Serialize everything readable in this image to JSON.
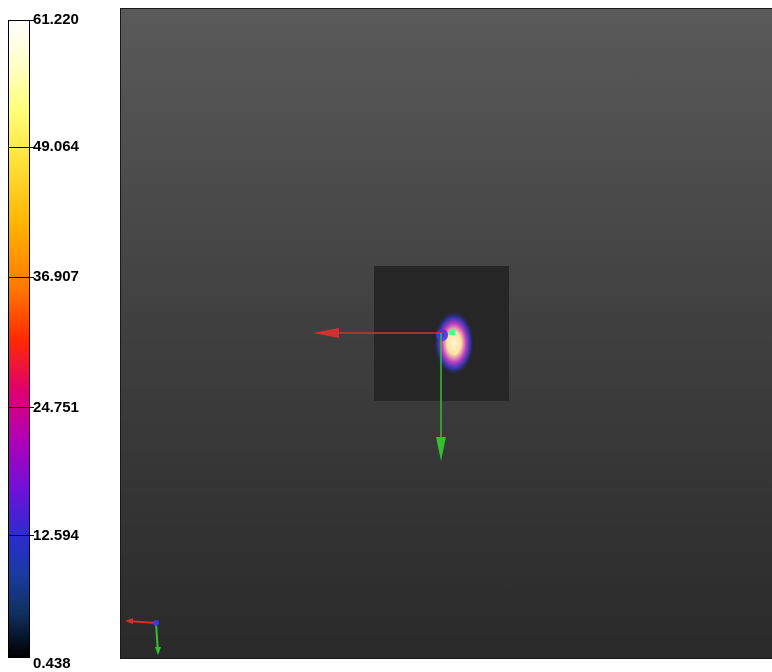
{
  "colorbar": {
    "ticks": [
      {
        "label": "61.220",
        "value": 61.22
      },
      {
        "label": "49.064",
        "value": 49.064
      },
      {
        "label": "36.907",
        "value": 36.907
      },
      {
        "label": "24.751",
        "value": 24.751
      },
      {
        "label": "12.594",
        "value": 12.594
      },
      {
        "label": "0.438",
        "value": 0.438
      }
    ],
    "min": 0.438,
    "max": 61.22
  },
  "colors": {
    "viewport_top": "#5a5a5a",
    "viewport_bottom": "#2a2a2a",
    "axis_x": "#d03030",
    "axis_y": "#30c030",
    "marker": "#40ff90"
  },
  "icons": [
    "orientation-axes-icon"
  ]
}
